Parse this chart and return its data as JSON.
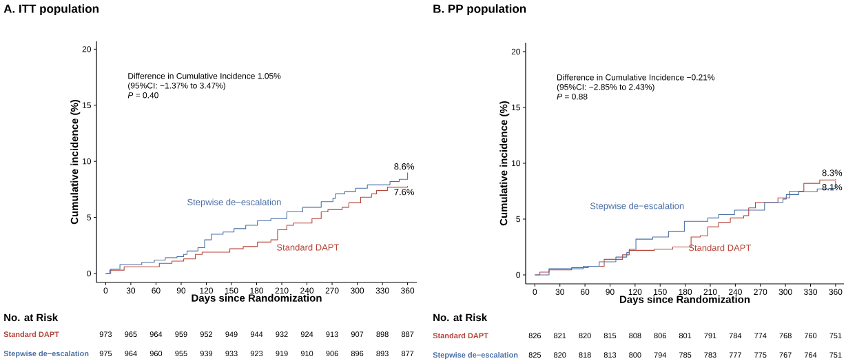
{
  "chart_data": [
    {
      "type": "step",
      "title": "A. ITT population",
      "xlabel": "Days since Randomization",
      "ylabel": "Cumulative incidence (%)",
      "xlim": [
        -11,
        371
      ],
      "ylim": [
        -0.8,
        20.7
      ],
      "xticks": [
        0,
        30,
        60,
        90,
        120,
        150,
        180,
        210,
        240,
        270,
        300,
        330,
        360
      ],
      "yticks": [
        0,
        5,
        10,
        15,
        20
      ],
      "series": [
        {
          "name": "Standard DAPT",
          "color": "#b5453a",
          "x": [
            0,
            5,
            22,
            64,
            79,
            93,
            107,
            115,
            148,
            164,
            181,
            197,
            205,
            216,
            224,
            246,
            257,
            265,
            282,
            290,
            304,
            317,
            323,
            336,
            360
          ],
          "values": [
            0,
            0.3,
            0.6,
            0.9,
            1.1,
            1.3,
            1.7,
            1.9,
            2.2,
            2.4,
            2.8,
            3.0,
            3.9,
            4.3,
            4.5,
            4.9,
            5.5,
            5.7,
            5.9,
            6.3,
            6.8,
            7.1,
            7.4,
            7.7,
            7.8
          ]
        },
        {
          "name": "Stepwise de−escalation",
          "color": "#4a6fa5",
          "x": [
            0,
            6,
            17,
            43,
            58,
            71,
            85,
            93,
            97,
            110,
            118,
            126,
            140,
            153,
            167,
            181,
            197,
            216,
            235,
            257,
            271,
            274,
            285,
            298,
            312,
            339,
            350,
            360
          ],
          "values": [
            0,
            0.4,
            0.8,
            1.0,
            1.2,
            1.4,
            1.5,
            1.7,
            2.0,
            2.3,
            3.0,
            3.5,
            3.7,
            4.0,
            4.3,
            4.7,
            4.9,
            5.5,
            5.9,
            6.4,
            6.7,
            7.1,
            7.3,
            7.6,
            7.9,
            8.2,
            8.4,
            9.0
          ]
        }
      ],
      "annotations": [
        "Difference in Cumulative Incidence 1.05%",
        "(95%CI: −1.37% to 3.47%)",
        "*P* = 0.40",
        "7.6%",
        "8.6%",
        "No. at Risk",
        "973",
        "965",
        "964",
        "959",
        "952",
        "949",
        "944",
        "932",
        "924",
        "913",
        "907",
        "898",
        "887",
        "975",
        "964",
        "960",
        "955",
        "939",
        "933",
        "923",
        "919",
        "910",
        "906",
        "896",
        "893",
        "877"
      ]
    },
    {
      "type": "step",
      "title": "B. PP population",
      "xlabel": "Days since Randomization",
      "ylabel": "Cumulative incidence (%)",
      "xlim": [
        -11,
        370
      ],
      "ylim": [
        -0.8,
        20.8
      ],
      "xticks": [
        0,
        30,
        60,
        90,
        120,
        150,
        180,
        210,
        240,
        270,
        300,
        330,
        360
      ],
      "yticks": [
        0,
        5,
        10,
        15,
        20
      ],
      "series": [
        {
          "name": "Standard DAPT",
          "color": "#b5453a",
          "x": [
            0,
            6,
            17,
            44,
            64,
            83,
            105,
            113,
            143,
            165,
            187,
            198,
            207,
            220,
            234,
            250,
            256,
            264,
            291,
            305,
            322,
            341,
            360
          ],
          "values": [
            0,
            0.25,
            0.45,
            0.65,
            0.77,
            1.4,
            1.8,
            2.2,
            2.3,
            2.5,
            3.4,
            3.5,
            4.3,
            4.7,
            5.1,
            5.3,
            6.0,
            6.5,
            6.9,
            7.5,
            8.2,
            8.5,
            8.6
          ]
        },
        {
          "name": "Stepwise de−escalation",
          "color": "#4a6fa5",
          "x": [
            0,
            17,
            58,
            77,
            97,
            110,
            113,
            121,
            141,
            160,
            179,
            207,
            220,
            239,
            275,
            297,
            301,
            316,
            338,
            352,
            360
          ],
          "values": [
            0,
            0.55,
            0.77,
            1.17,
            1.6,
            2.0,
            2.3,
            3.2,
            3.4,
            3.9,
            4.8,
            5.1,
            5.4,
            5.8,
            6.5,
            6.8,
            7.2,
            7.45,
            7.7,
            7.75,
            8.4
          ]
        }
      ],
      "annotations": [
        "Difference in Cumulative Incidence  −0.21%",
        "(95%CI: −2.85% to 2.43%)",
        "*P* = 0.88",
        "8.3%",
        "8.1%",
        "No. at Risk",
        "826",
        "821",
        "820",
        "815",
        "808",
        "806",
        "801",
        "791",
        "784",
        "774",
        "768",
        "760",
        "751",
        "825",
        "820",
        "818",
        "813",
        "800",
        "794",
        "785",
        "783",
        "777",
        "775",
        "767",
        "764",
        "751"
      ]
    }
  ]
}
